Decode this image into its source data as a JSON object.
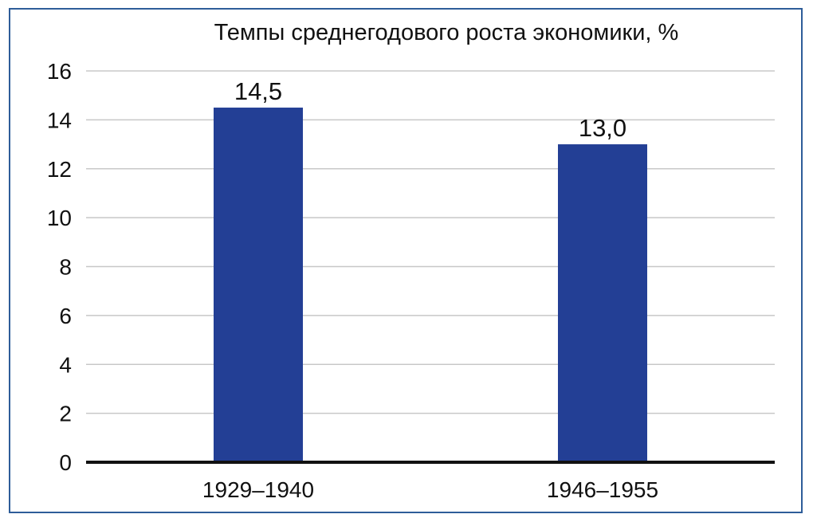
{
  "chart_data": {
    "type": "bar",
    "title": "Темпы среднегодового роста экономики, %",
    "categories": [
      "1929–1940",
      "1946–1955"
    ],
    "values": [
      14.5,
      13.0
    ],
    "value_labels": [
      "14,5",
      "13,0"
    ],
    "ylim": [
      0,
      16
    ],
    "yticks": [
      0,
      2,
      4,
      6,
      8,
      10,
      12,
      14,
      16
    ],
    "grid": true,
    "legend": "none",
    "bar_color": "#233f95",
    "gridline_color": "#c8c8c8",
    "axis_color": "#111111",
    "border_color": "#2e5d99"
  }
}
